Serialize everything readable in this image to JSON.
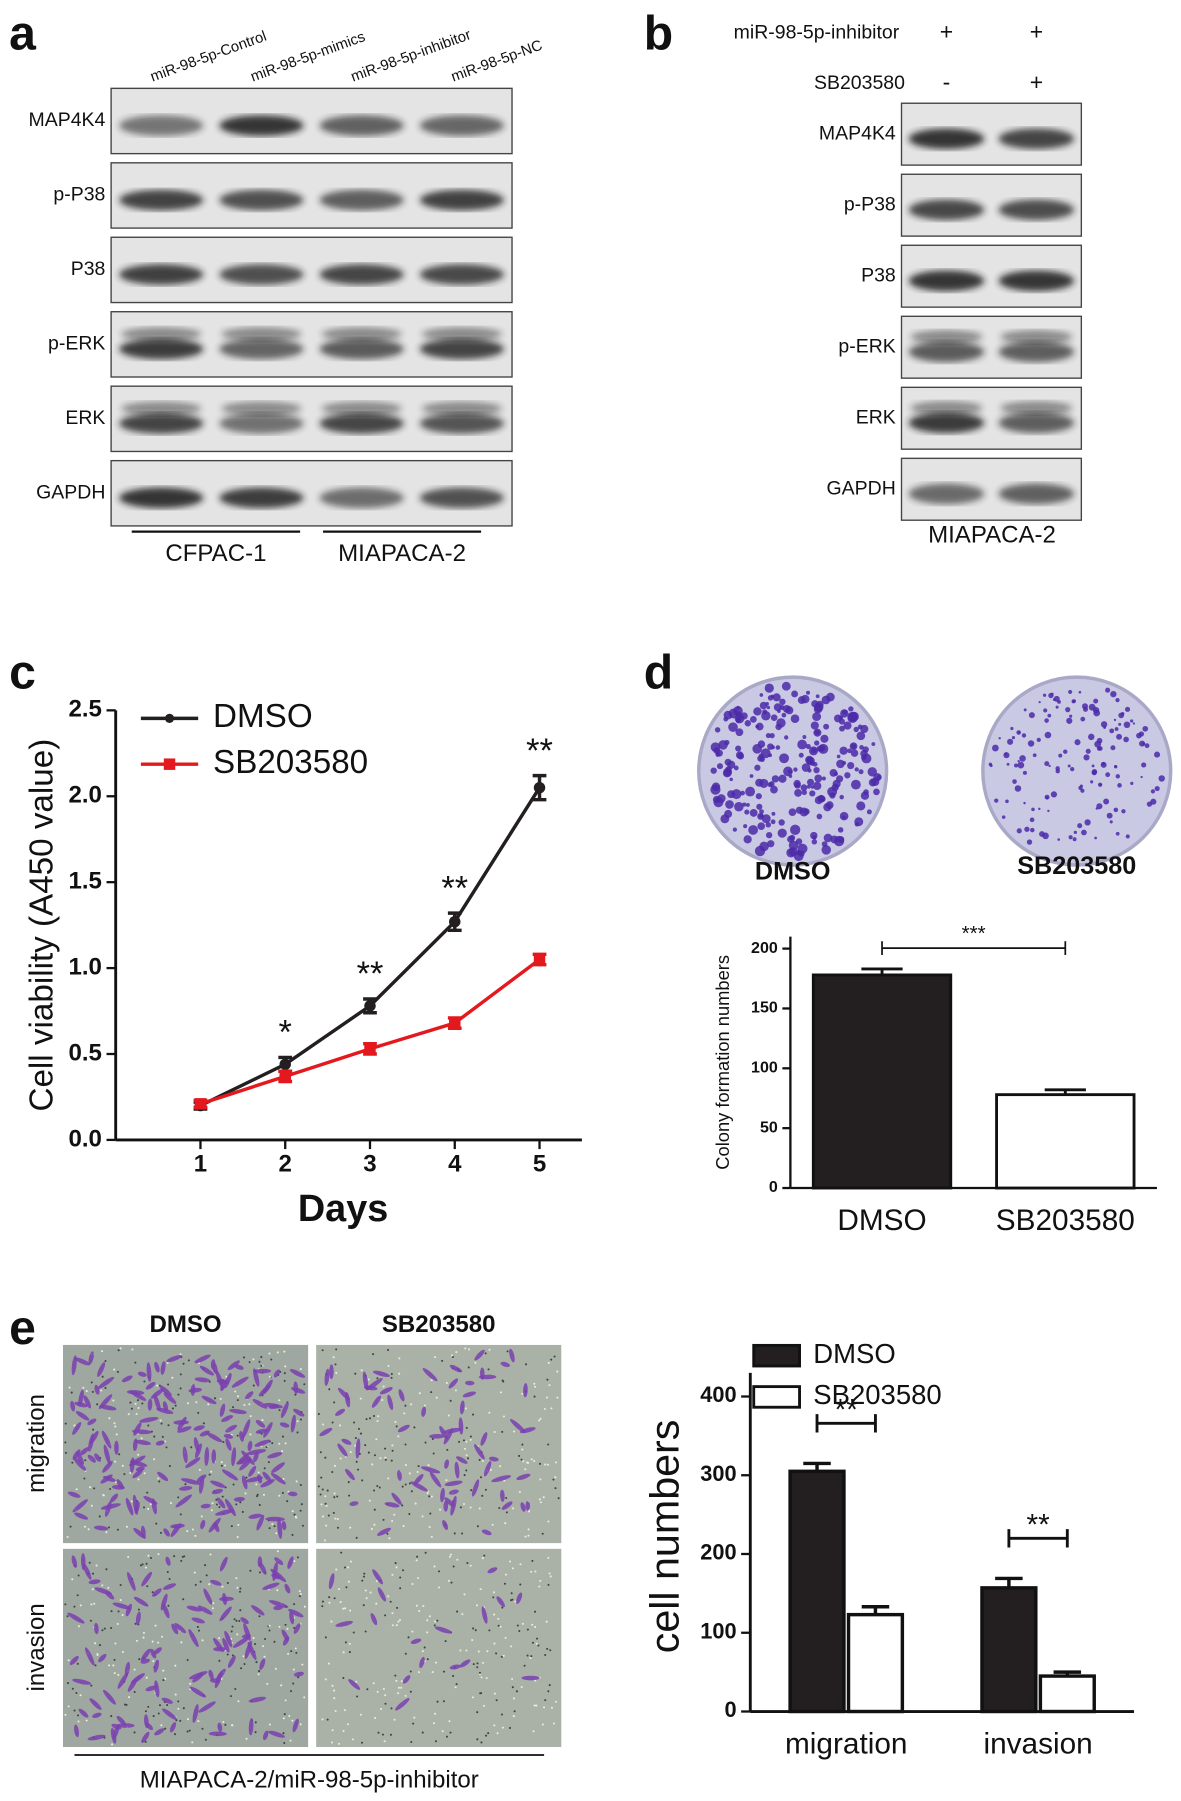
{
  "panel_labels": [
    "a",
    "b",
    "c",
    "d",
    "e"
  ],
  "blot_a": {
    "lanes": [
      "miR-98-5p-Control",
      "miR-98-5p-mimics",
      "miR-98-5p-inhibitor",
      "miR-98-5p-NC"
    ],
    "proteins": [
      "MAP4K4",
      "p-P38",
      "P38",
      "p-ERK",
      "ERK",
      "GAPDH"
    ],
    "cell_lines": [
      "CFPAC-1",
      "MIAPACA-2"
    ]
  },
  "blot_b": {
    "treatments": [
      {
        "label": "miR-98-5p-inhibitor",
        "signs": [
          "+",
          "+"
        ]
      },
      {
        "label": "SB203580",
        "signs": [
          "-",
          "+"
        ]
      }
    ],
    "proteins": [
      "MAP4K4",
      "p-P38",
      "P38",
      "p-ERK",
      "ERK",
      "GAPDH"
    ],
    "cell_line": "MIAPACA-2"
  },
  "dishes_d": {
    "labels": [
      "DMSO",
      "SB203580"
    ]
  },
  "images_e": {
    "columns": [
      "DMSO",
      "SB203580"
    ],
    "rows": [
      "migration",
      "invasion"
    ],
    "caption": "MIAPACA-2/miR-98-5p-inhibitor"
  },
  "chart_data": [
    {
      "type": "line",
      "xlabel": "Days",
      "ylabel": "Cell viability (A450 value)",
      "x": [
        1,
        2,
        3,
        4,
        5
      ],
      "xlim": [
        0,
        5.5
      ],
      "xticks": [
        1,
        2,
        3,
        4,
        5
      ],
      "ylim": [
        0,
        2.5
      ],
      "yticks": [
        {
          "value": 0,
          "label": "0.0"
        },
        0.5,
        {
          "value": 1,
          "label": "1.0"
        },
        1.5,
        {
          "value": 2,
          "label": "2.0"
        },
        2.5
      ],
      "legend": "upper left",
      "series": [
        {
          "name": "DMSO",
          "color": "#231f20",
          "marker": "circle",
          "values": [
            0.2,
            0.44,
            0.78,
            1.27,
            2.05
          ],
          "errors": [
            0.02,
            0.04,
            0.04,
            0.05,
            0.07
          ]
        },
        {
          "name": "SB203580",
          "color": "#e3191e",
          "marker": "square",
          "values": [
            0.21,
            0.37,
            0.53,
            0.68,
            1.05
          ],
          "errors": [
            0.02,
            0.03,
            0.03,
            0.03,
            0.03
          ]
        }
      ],
      "annotations": [
        {
          "x": 2,
          "text": "*"
        },
        {
          "x": 3,
          "text": "**"
        },
        {
          "x": 4,
          "text": "**"
        },
        {
          "x": 5,
          "text": "**"
        }
      ]
    },
    {
      "type": "bar",
      "ylabel": "Colony formation numbers",
      "categories": [
        "DMSO",
        "SB203580"
      ],
      "values": [
        178,
        78
      ],
      "errors": [
        5,
        4
      ],
      "colors": [
        "#231f20",
        "#ffffff"
      ],
      "ylim": [
        0,
        210
      ],
      "yticks": [
        0,
        50,
        100,
        150,
        200
      ],
      "significance": "***"
    },
    {
      "type": "grouped_bar",
      "ylabel": "cell numbers",
      "categories": [
        "migration",
        "invasion"
      ],
      "series": [
        {
          "name": "DMSO",
          "color": "#231f20",
          "values": [
            305,
            157
          ],
          "errors": [
            10,
            12
          ]
        },
        {
          "name": "SB203580",
          "color": "#ffffff",
          "values": [
            123,
            45
          ],
          "errors": [
            10,
            5
          ]
        }
      ],
      "ylim": [
        0,
        430
      ],
      "yticks": [
        0,
        100,
        200,
        300,
        400
      ],
      "legend": "upper left",
      "significance": [
        "**",
        "**"
      ]
    }
  ]
}
